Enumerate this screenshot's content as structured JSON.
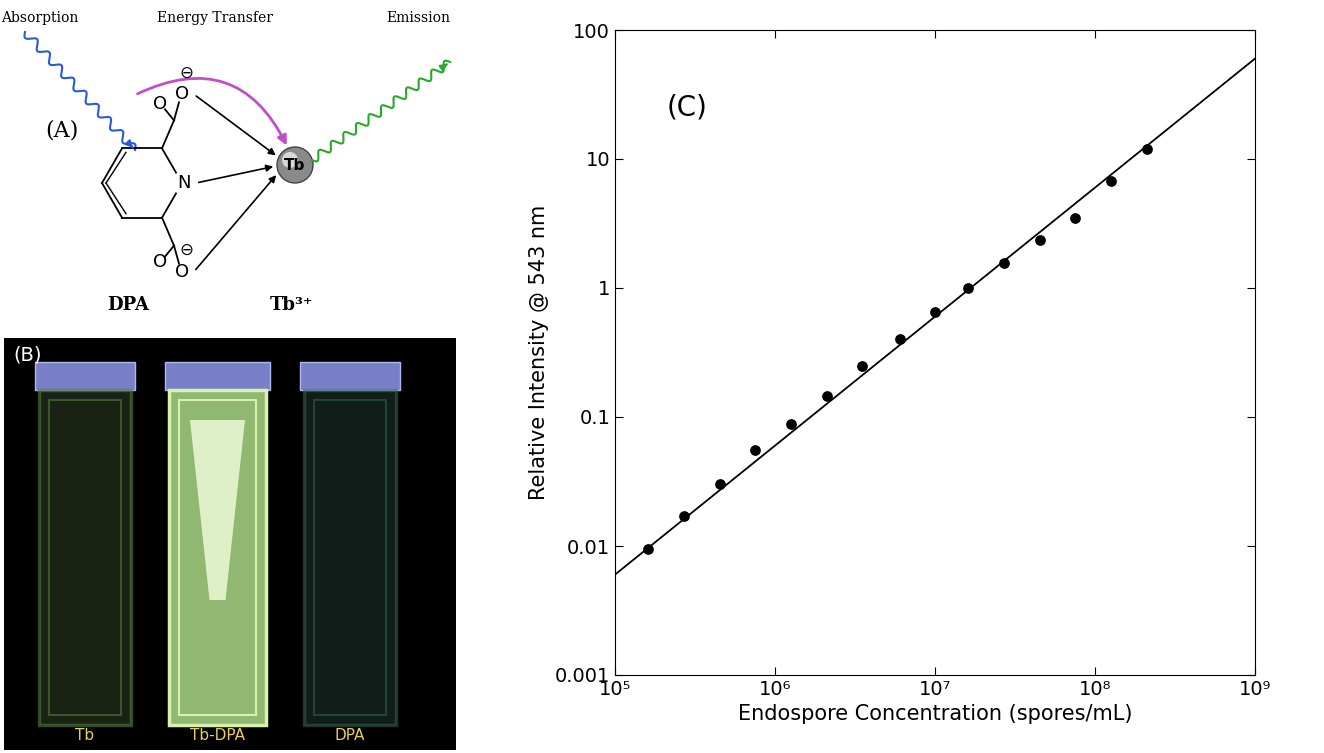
{
  "chart_data": {
    "type": "scatter",
    "log": true,
    "grid": false,
    "annotation": "(C)",
    "x_label": "Endospore Concentration (spores/mL)",
    "y_label": "Relative Intensity @ 543 nm",
    "xlim": [
      100000,
      1000000000
    ],
    "ylim": [
      0.001,
      100
    ],
    "xticks": [
      {
        "value": 100000,
        "label": "10⁵"
      },
      {
        "value": 1000000,
        "label": "10⁶"
      },
      {
        "value": 10000000,
        "label": "10⁷"
      },
      {
        "value": 100000000,
        "label": "10⁸"
      },
      {
        "value": 1000000000,
        "label": "10⁹"
      }
    ],
    "yticks": [
      0.001,
      0.01,
      0.1,
      1,
      10,
      100
    ],
    "series": [
      {
        "type": "scatter",
        "marker": "o",
        "color": "#000000",
        "x": [
          160000,
          270000,
          450000,
          750000,
          1250000,
          2100000,
          3500000,
          6000000,
          10000000,
          16000000,
          27000000,
          45000000,
          75000000,
          125000000,
          210000000
        ],
        "values": [
          0.0095,
          0.017,
          0.03,
          0.055,
          0.088,
          0.145,
          0.25,
          0.4,
          0.65,
          1.0,
          1.55,
          2.35,
          3.5,
          6.8,
          12
        ]
      },
      {
        "type": "line",
        "line_style": "solid",
        "color": "#000000",
        "x": [
          100000,
          1000000000
        ],
        "values": [
          0.006,
          60
        ]
      }
    ]
  },
  "panel_a": {
    "label": "(A)",
    "absorption": "Absorption",
    "energy_transfer": "Energy Transfer",
    "emission": "Emission",
    "ring_atom": "N",
    "oxygen": "O",
    "charge": "⊖",
    "metal": "Tb",
    "ligand_caption": "DPA",
    "metal_caption": "Tb³⁺"
  },
  "panel_b": {
    "label": "(B)",
    "cuvettes": [
      "Tb",
      "Tb-DPA",
      "DPA"
    ]
  }
}
